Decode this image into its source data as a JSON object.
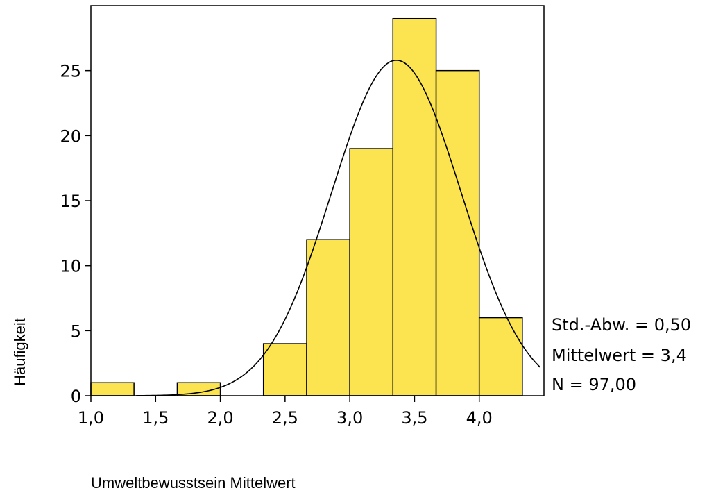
{
  "chart_data": {
    "type": "bar",
    "subtype": "histogram",
    "xlabel": "Umweltbewusstsein Mittelwert",
    "ylabel": "Häufigkeit",
    "bins": [
      {
        "x0": 1.0,
        "x1": 1.333,
        "count": 1
      },
      {
        "x0": 1.333,
        "x1": 1.667,
        "count": 0
      },
      {
        "x0": 1.667,
        "x1": 2.0,
        "count": 1
      },
      {
        "x0": 2.0,
        "x1": 2.333,
        "count": 0
      },
      {
        "x0": 2.333,
        "x1": 2.667,
        "count": 4
      },
      {
        "x0": 2.667,
        "x1": 3.0,
        "count": 12
      },
      {
        "x0": 3.0,
        "x1": 3.333,
        "count": 19
      },
      {
        "x0": 3.333,
        "x1": 3.667,
        "count": 29
      },
      {
        "x0": 3.667,
        "x1": 4.0,
        "count": 25
      },
      {
        "x0": 4.0,
        "x1": 4.333,
        "count": 6
      }
    ],
    "xlim": [
      1.0,
      4.5
    ],
    "ylim": [
      0,
      30
    ],
    "xticks": [
      1.0,
      1.5,
      2.0,
      2.5,
      3.0,
      3.5,
      4.0
    ],
    "xtick_labels": [
      "1,0",
      "1,5",
      "2,0",
      "2,5",
      "3,0",
      "3,5",
      "4,0"
    ],
    "yticks": [
      0,
      5,
      10,
      15,
      20,
      25
    ],
    "ytick_labels": [
      "0",
      "5",
      "10",
      "15",
      "20",
      "25"
    ],
    "normal_curve": {
      "mean": 3.36,
      "sd": 0.5,
      "n": 97,
      "bin_width": 0.3333
    },
    "bar_color": "#fbe44f",
    "stats": {
      "std": "Std.-Abw. = 0,50",
      "mean": "Mittelwert = 3,4",
      "n": "N = 97,00"
    }
  }
}
